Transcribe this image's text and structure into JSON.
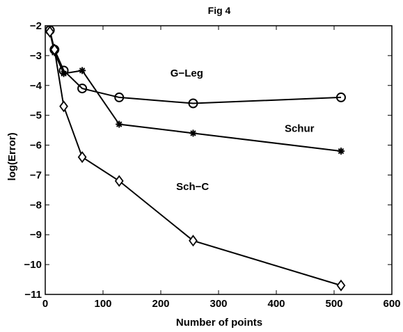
{
  "chart_data": {
    "type": "line",
    "title": "Fig 4",
    "xlabel": "Number of points",
    "ylabel": "log(Error)",
    "xlim": [
      0,
      600
    ],
    "ylim": [
      -11,
      -2
    ],
    "xticks": [
      0,
      100,
      200,
      300,
      400,
      500,
      600
    ],
    "yticks": [
      -11,
      -10,
      -9,
      -8,
      -7,
      -6,
      -5,
      -4,
      -3,
      -2
    ],
    "grid": false,
    "series": [
      {
        "name": "G−Leg",
        "marker": "circle",
        "x": [
          8,
          16,
          32,
          64,
          128,
          256,
          512
        ],
        "y": [
          -2.15,
          -2.8,
          -3.5,
          -4.1,
          -4.4,
          -4.6,
          -4.4
        ]
      },
      {
        "name": "Schur",
        "marker": "asterisk",
        "x": [
          8,
          16,
          32,
          64,
          128,
          256,
          512
        ],
        "y": [
          -2.2,
          -2.9,
          -3.6,
          -3.5,
          -5.3,
          -5.6,
          -6.2
        ]
      },
      {
        "name": "Sch−C",
        "marker": "diamond",
        "x": [
          8,
          16,
          32,
          64,
          128,
          256,
          512
        ],
        "y": [
          -2.2,
          -2.8,
          -4.7,
          -6.4,
          -7.2,
          -9.2,
          -10.7
        ]
      }
    ],
    "annotations": [
      {
        "text": "G−Leg",
        "x": 245,
        "y": -3.7
      },
      {
        "text": "Schur",
        "x": 440,
        "y": -5.55
      },
      {
        "text": "Sch−C",
        "x": 255,
        "y": -7.5
      }
    ]
  }
}
